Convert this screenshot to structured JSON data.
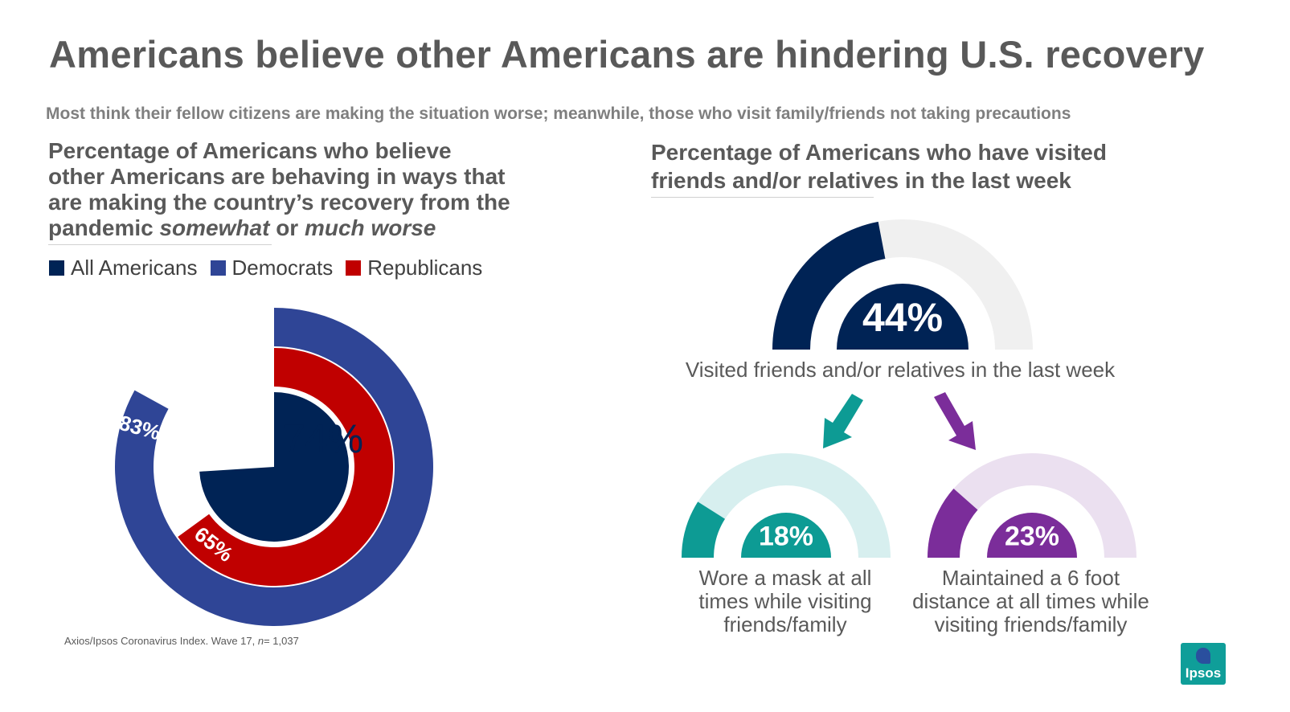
{
  "title": "Americans believe other Americans are hindering U.S. recovery",
  "subtitle": "Most think their fellow citizens are making the situation worse; meanwhile, those who visit family/friends not taking precautions",
  "left_panel": {
    "title_line1": "Percentage of Americans who believe",
    "title_line2": "other Americans are behaving in ways that",
    "title_line3": "are making the country’s recovery from the",
    "title_line4_pre": "pandemic ",
    "title_line4_em1": "somewhat",
    "title_line4_mid": " or ",
    "title_line4_em2": "much worse"
  },
  "legend": [
    {
      "label": "All Americans",
      "color": "#002355"
    },
    {
      "label": "Democrats",
      "color": "#2f4596"
    },
    {
      "label": "Republicans",
      "color": "#c00000"
    }
  ],
  "right_panel": {
    "title_line1": "Percentage of Americans who have visited",
    "title_line2": "friends and/or relatives in the last week"
  },
  "note": {
    "pre": "Axios/Ipsos Coronavirus Index. Wave 17, ",
    "n_label": "n",
    "post": "= 1,037"
  },
  "logo": {
    "text": "Ipsos"
  },
  "chart_data": [
    {
      "type": "pie",
      "variant": "nested-radial",
      "series": [
        {
          "name": "All Americans",
          "value": 74,
          "label": "74%",
          "color": "#002355"
        },
        {
          "name": "Democrats",
          "value": 83,
          "label": "83%",
          "color": "#2f4596"
        },
        {
          "name": "Republicans",
          "value": 65,
          "label": "65%",
          "color": "#c00000"
        }
      ]
    },
    {
      "type": "pie",
      "variant": "half-gauge",
      "value": 44,
      "label": "44%",
      "color": "#002355",
      "track": "#f0f0f0",
      "caption": "Visited friends and/or relatives in the last week"
    },
    {
      "type": "pie",
      "variant": "half-gauge",
      "value": 18,
      "label": "18%",
      "color": "#0d9b94",
      "track": "#d7efef",
      "caption_lines": [
        "Wore a mask at all",
        "times while visiting",
        "friends/family"
      ]
    },
    {
      "type": "pie",
      "variant": "half-gauge",
      "value": 23,
      "label": "23%",
      "color": "#7b2d9a",
      "track": "#ebe0f0",
      "caption_lines": [
        "Maintained a 6 foot",
        "distance at all times while",
        "visiting friends/family"
      ]
    }
  ],
  "arrows": {
    "left_color": "#0d9b94",
    "right_color": "#7b2d9a"
  }
}
